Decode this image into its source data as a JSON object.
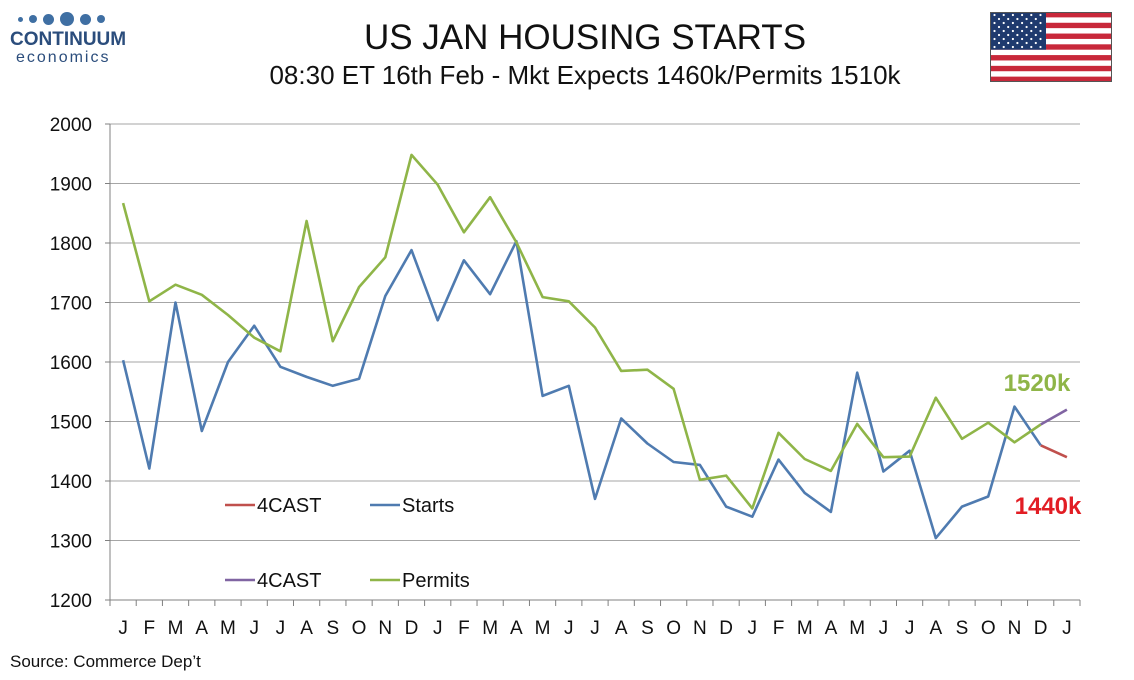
{
  "logo": {
    "name": "CONTINUUM",
    "sub": "economics"
  },
  "header": {
    "title": "US JAN HOUSING STARTS",
    "subtitle": "08:30 ET 16th Feb - Mkt Expects 1460k/Permits 1510k"
  },
  "flag": {
    "icon": "us-flag-icon"
  },
  "source": "Source: Commerce Dep’t",
  "colors": {
    "starts": "#4f7bb0",
    "permits": "#8fb548",
    "forecast_starts": "#c0504d",
    "forecast_permits": "#8064a2",
    "grid": "#a6a6a6",
    "annotation_starts": "#e21d24",
    "annotation_permits": "#8fb548"
  },
  "chart_data": {
    "type": "line",
    "title": "US JAN HOUSING STARTS",
    "subtitle": "08:30 ET 16th Feb - Mkt Expects 1460k/Permits 1510k",
    "xlabel": "",
    "ylabel": "",
    "ylim": [
      1200,
      2000
    ],
    "yticks": [
      1200,
      1300,
      1400,
      1500,
      1600,
      1700,
      1800,
      1900,
      2000
    ],
    "grid": true,
    "legend_position": "lower-left",
    "categories": [
      "J",
      "F",
      "M",
      "A",
      "M",
      "J",
      "J",
      "A",
      "S",
      "O",
      "N",
      "D",
      "J",
      "F",
      "M",
      "A",
      "M",
      "J",
      "J",
      "A",
      "S",
      "O",
      "N",
      "D",
      "J",
      "F",
      "M",
      "A",
      "M",
      "J",
      "J",
      "A",
      "S",
      "O",
      "N",
      "D",
      "J"
    ],
    "series": [
      {
        "name": "Starts",
        "color": "#4f7bb0",
        "values": [
          1603,
          1421,
          1700,
          1484,
          1600,
          1661,
          1592,
          1575,
          1560,
          1572,
          1711,
          1788,
          1670,
          1771,
          1714,
          1803,
          1543,
          1560,
          1370,
          1505,
          1463,
          1432,
          1427,
          1357,
          1340,
          1436,
          1380,
          1348,
          1582,
          1416,
          1451,
          1304,
          1357,
          1374,
          1525,
          1460,
          null
        ]
      },
      {
        "name": "Permits",
        "color": "#8fb548",
        "values": [
          1867,
          1702,
          1730,
          1713,
          1679,
          1641,
          1618,
          1837,
          1635,
          1726,
          1776,
          1948,
          1898,
          1818,
          1877,
          1801,
          1709,
          1702,
          1658,
          1585,
          1587,
          1555,
          1402,
          1409,
          1354,
          1481,
          1437,
          1417,
          1496,
          1440,
          1441,
          1540,
          1471,
          1498,
          1465,
          1495,
          null
        ]
      },
      {
        "name": "4CAST",
        "color": "#c0504d",
        "values": [
          null,
          null,
          null,
          null,
          null,
          null,
          null,
          null,
          null,
          null,
          null,
          null,
          null,
          null,
          null,
          null,
          null,
          null,
          null,
          null,
          null,
          null,
          null,
          null,
          null,
          null,
          null,
          null,
          null,
          null,
          null,
          null,
          null,
          null,
          null,
          1460,
          1440
        ]
      },
      {
        "name": "4CAST",
        "color": "#8064a2",
        "values": [
          null,
          null,
          null,
          null,
          null,
          null,
          null,
          null,
          null,
          null,
          null,
          null,
          null,
          null,
          null,
          null,
          null,
          null,
          null,
          null,
          null,
          null,
          null,
          null,
          null,
          null,
          null,
          null,
          null,
          null,
          null,
          null,
          null,
          null,
          null,
          1495,
          1520
        ]
      }
    ],
    "legend": [
      {
        "label": "4CAST",
        "series": 2
      },
      {
        "label": "Starts",
        "series": 0
      },
      {
        "label": "4CAST",
        "series": 3
      },
      {
        "label": "Permits",
        "series": 1
      }
    ],
    "annotations": [
      {
        "text": "1520k",
        "series": 3,
        "value": 1520
      },
      {
        "text": "1440k",
        "series": 2,
        "value": 1440
      }
    ]
  }
}
